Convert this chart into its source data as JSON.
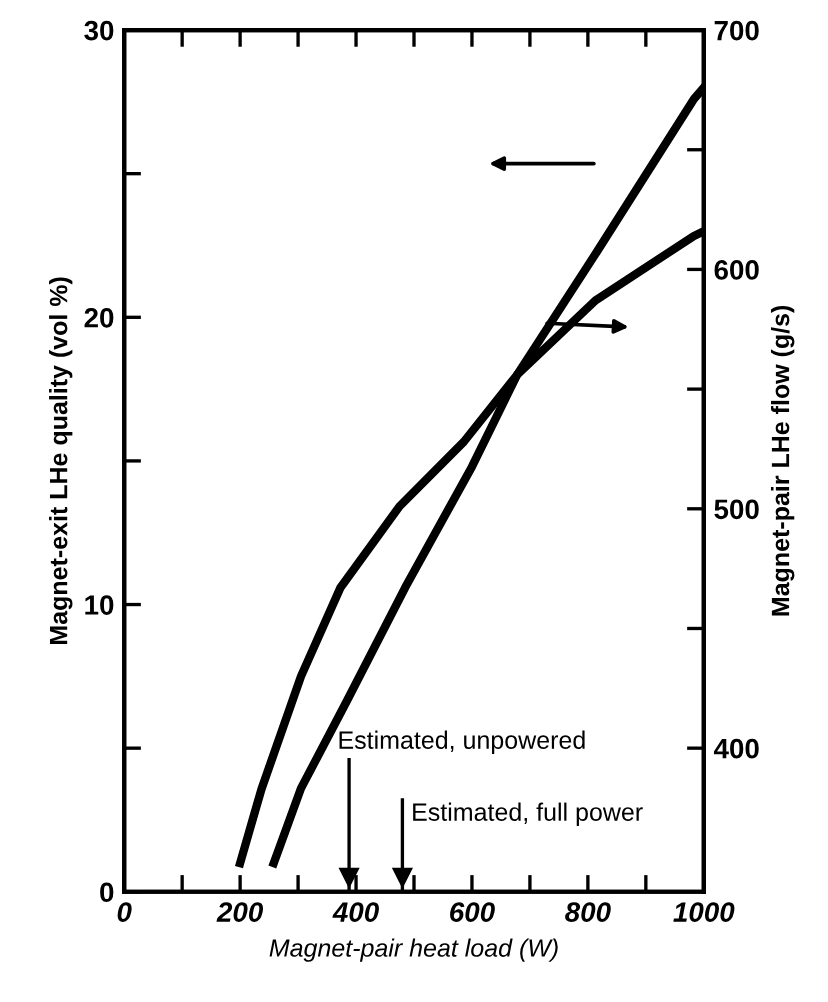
{
  "chart_data": {
    "type": "line",
    "xlabel": "Magnet-pair heat load (W)",
    "ylabel": "Magnet-exit LHe quality (vol %)",
    "y2label": "Magnet-pair LHe flow (g/s)",
    "xlim": [
      0,
      1000
    ],
    "xticks": [
      0,
      {
        "value": 100,
        "label": null
      },
      200,
      {
        "value": 300,
        "label": null
      },
      400,
      {
        "value": 500,
        "label": null
      },
      600,
      {
        "value": 700,
        "label": null
      },
      800,
      {
        "value": 900,
        "label": null
      },
      1000
    ],
    "ylim": [
      0,
      30
    ],
    "yticks": [
      0,
      {
        "value": 5,
        "label": null
      },
      10,
      {
        "value": 15,
        "label": null
      },
      20,
      {
        "value": 25,
        "label": null
      },
      30
    ],
    "y2lim": [
      340,
      700
    ],
    "y2ticks": [
      400,
      {
        "value": 450,
        "label": null
      },
      500,
      {
        "value": 550,
        "label": null
      },
      600,
      {
        "value": 650,
        "label": null
      },
      700
    ],
    "grid": false,
    "marker": "none",
    "line_style": "solid",
    "series": [
      {
        "color": "#000000",
        "x": [
          258,
          305,
          383,
          485,
          600,
          678,
          813,
          983,
          1000
        ],
        "values": [
          1.0,
          3.6,
          6.6,
          10.6,
          14.8,
          18.0,
          22.2,
          27.6,
          28.0
        ]
      },
      {
        "color": "#000000",
        "axis": "y2",
        "x": [
          200,
          237,
          305,
          373,
          475,
          586,
          678,
          813,
          983,
          1000
        ],
        "values": [
          352,
          383,
          430,
          467,
          501,
          528,
          556,
          587,
          614,
          616
        ]
      }
    ],
    "ref_lines": [
      {
        "axis": "x",
        "value": 388,
        "label": "Estimated, unpowered"
      },
      {
        "axis": "x",
        "value": 480,
        "label": "Estimated, full power"
      }
    ]
  }
}
